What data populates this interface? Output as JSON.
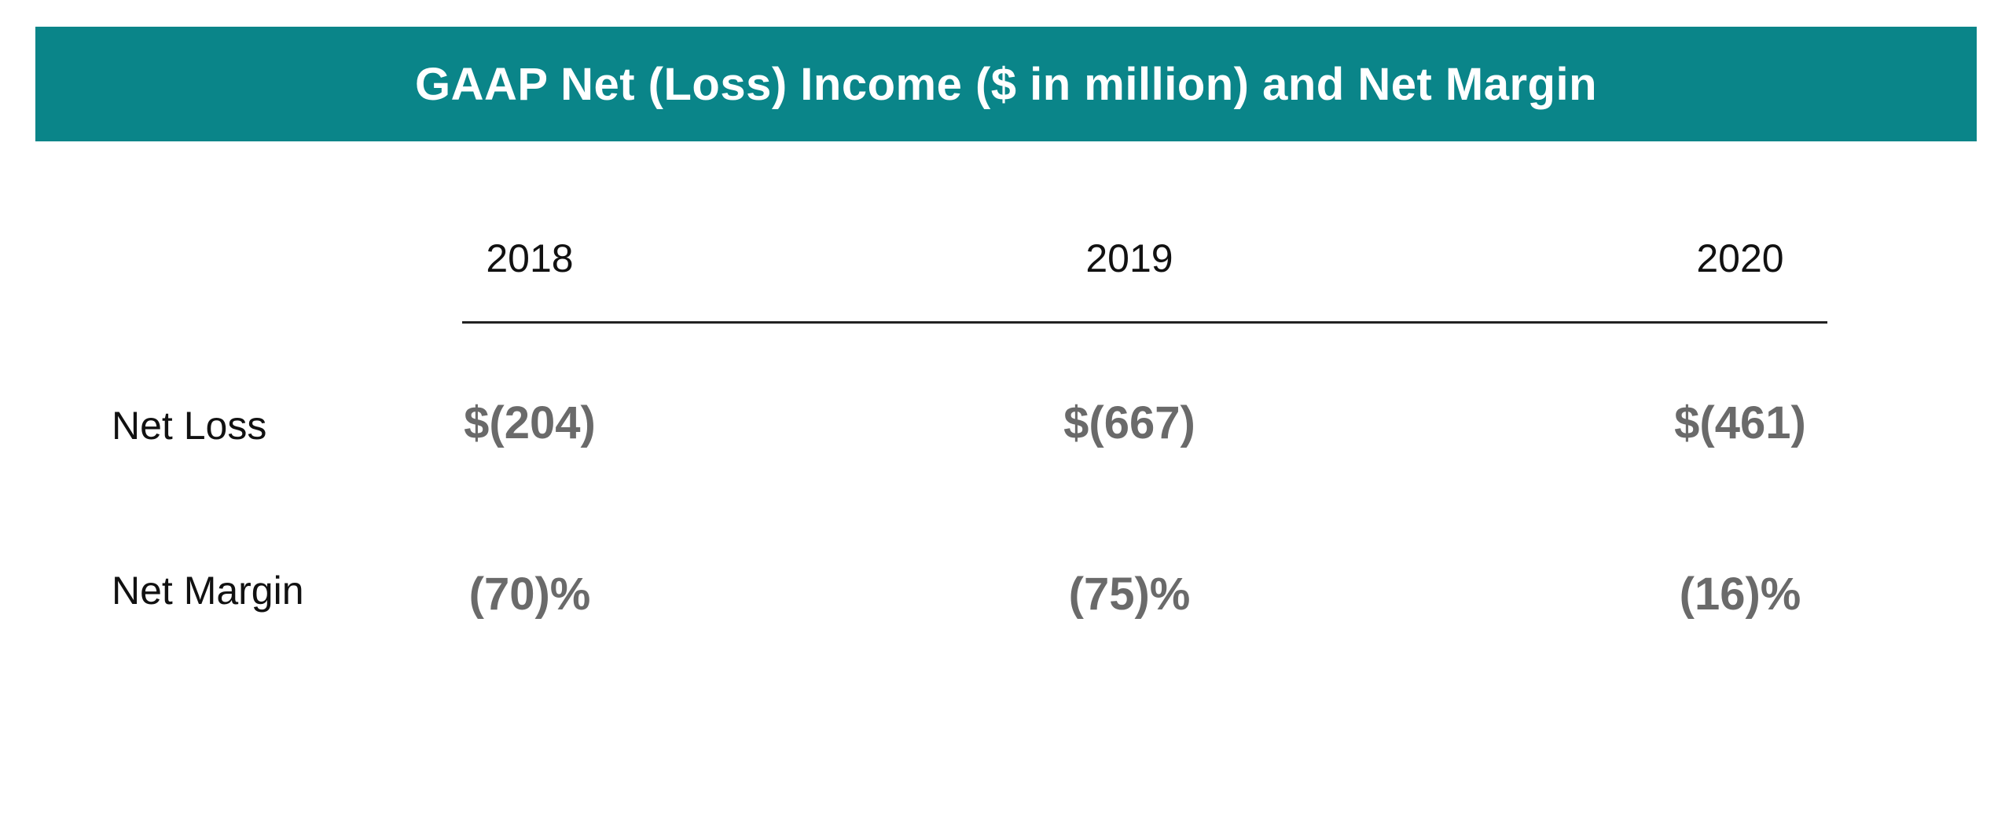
{
  "title": "GAAP Net (Loss) Income ($ in million) and Net Margin",
  "colors": {
    "banner": "#0a8589",
    "value_text": "#6a6a6a",
    "label_text": "#111111"
  },
  "chart_data": {
    "type": "table",
    "title": "GAAP Net (Loss) Income ($ in million) and Net Margin",
    "columns": [
      "2018",
      "2019",
      "2020"
    ],
    "rows": [
      {
        "label": "Net Loss",
        "values": [
          -204,
          -667,
          -461
        ],
        "display": [
          "$(204)",
          "$(667)",
          "$(461)"
        ],
        "unit": "$ in million"
      },
      {
        "label": "Net Margin",
        "values": [
          -70,
          -75,
          -16
        ],
        "display": [
          "(70)%",
          "(75)%",
          "(16)%"
        ],
        "unit": "%"
      }
    ]
  }
}
